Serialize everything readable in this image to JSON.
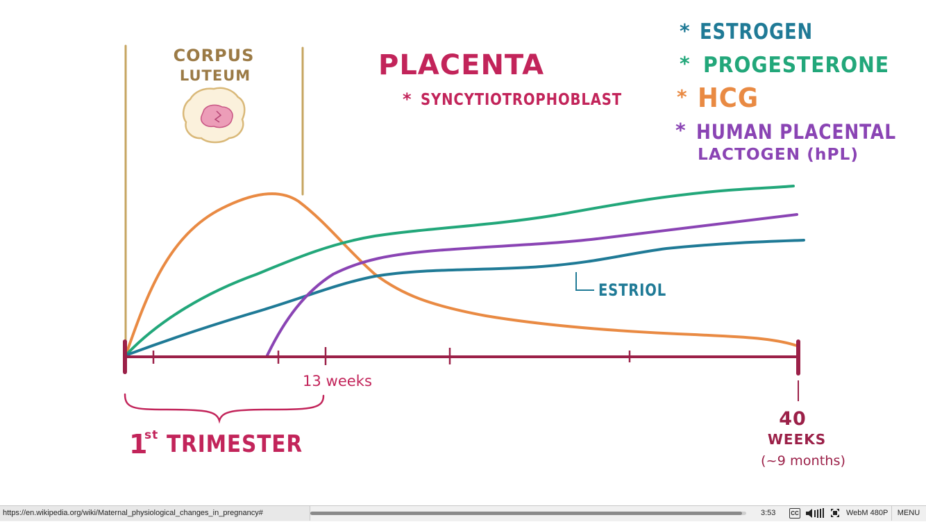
{
  "colors": {
    "estrogen": "#1f7a96",
    "progesterone": "#22a77a",
    "hcg": "#e98a43",
    "hpl": "#8a44b4",
    "axis": "#9b2048",
    "title": "#c2245a",
    "corpus": "#9b7a45",
    "corpus_line": "#c6a560"
  },
  "labels": {
    "corpus_line1": "CORPUS",
    "corpus_line2": "LUTEUM",
    "placenta": "PLACENTA",
    "syncytio": "SYNCYTIOTROPHOBLAST",
    "estriol": "ESTRIOL",
    "week13": "13 weeks",
    "trimester_num": "1",
    "trimester_sup": "st",
    "trimester_word": "TRIMESTER",
    "week40_num": "40",
    "week40_word": "WEEKS",
    "week40_note": "(~9 months)"
  },
  "legend": [
    {
      "text": "ESTROGEN",
      "color": "#1f7a96"
    },
    {
      "text": "PROGESTERONE",
      "color": "#22a77a"
    },
    {
      "text": "HCG",
      "color": "#e98a43"
    },
    {
      "text": "HUMAN PLACENTAL",
      "text2": "LACTOGEN (hPL)",
      "color": "#8a44b4"
    }
  ],
  "statusbar": {
    "url": "https://en.wikipedia.org/wiki/Maternal_physiological_changes_in_pregnancy#",
    "time": "3:53",
    "cc": "CC",
    "quality": "WebM 480P",
    "menu": "MENU",
    "progress": 0.99
  }
}
